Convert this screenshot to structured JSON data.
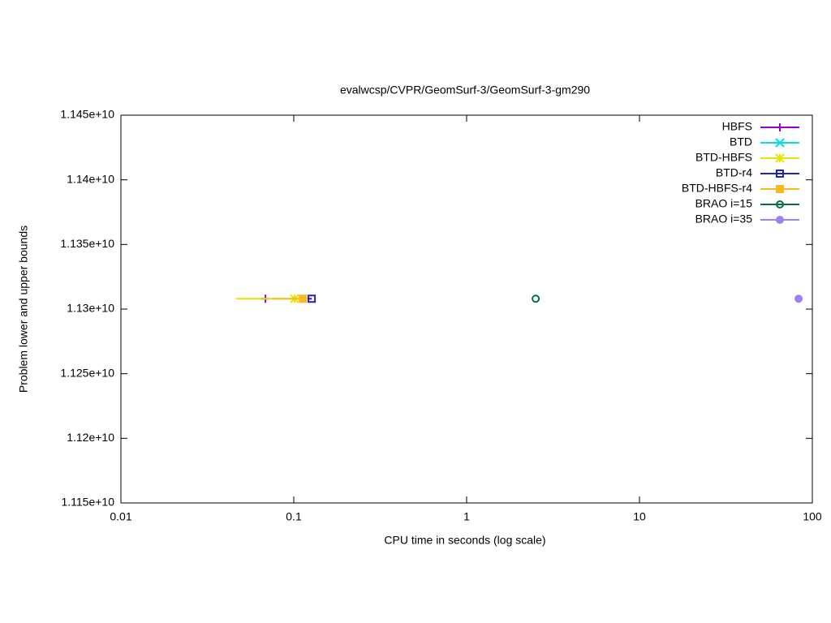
{
  "chart_data": {
    "type": "line",
    "title": "evalwcsp/CVPR/GeomSurf-3/GeomSurf-3-gm290",
    "x_label": "CPU time in seconds (log scale)",
    "y_label": "Problem lower and upper bounds",
    "x_log": true,
    "xlim": [
      0.01,
      100
    ],
    "xticks": [
      0.01,
      0.1,
      1,
      10,
      100
    ],
    "ylim": [
      11150000000,
      11450000000
    ],
    "yticks": [
      {
        "value": 11150000000,
        "label": "1.115e+10"
      },
      {
        "value": 11200000000,
        "label": "1.12e+10"
      },
      {
        "value": 11250000000,
        "label": "1.125e+10"
      },
      {
        "value": 11300000000,
        "label": "1.13e+10"
      },
      {
        "value": 11350000000,
        "label": "1.135e+10"
      },
      {
        "value": 11400000000,
        "label": "1.14e+10"
      },
      {
        "value": 11450000000,
        "label": "1.145e+10"
      }
    ],
    "legend": "top-right",
    "series": [
      {
        "name": "HBFS",
        "color": "#9400d3",
        "marker": "plus",
        "x": [
          0.064,
          0.0686
        ],
        "values": [
          11308000000,
          11308000000
        ]
      },
      {
        "name": "BTD",
        "color": "#00e0e0",
        "marker": "cross",
        "x": [],
        "values": []
      },
      {
        "name": "BTD-HBFS",
        "color": "#e6e600",
        "marker": "star",
        "x": [
          0.0464,
          0.101
        ],
        "values": [
          11308000000,
          11308000000
        ]
      },
      {
        "name": "BTD-r4",
        "color": "#2020c0",
        "marker": "square-open",
        "x": [
          0.12,
          0.127
        ],
        "values": [
          11308000000,
          11308000000
        ]
      },
      {
        "name": "BTD-HBFS-r4",
        "color": "#f8b820",
        "marker": "square",
        "x": [
          0.075,
          0.113
        ],
        "values": [
          11308000000,
          11308000000
        ]
      },
      {
        "name": "BRAO i=15",
        "color": "#007040",
        "marker": "circle-open",
        "x": [
          2.51
        ],
        "values": [
          11308000000
        ]
      },
      {
        "name": "BRAO i=35",
        "color": "#a080f0",
        "marker": "circle",
        "x": [
          83.3
        ],
        "values": [
          11308000000
        ]
      }
    ]
  }
}
